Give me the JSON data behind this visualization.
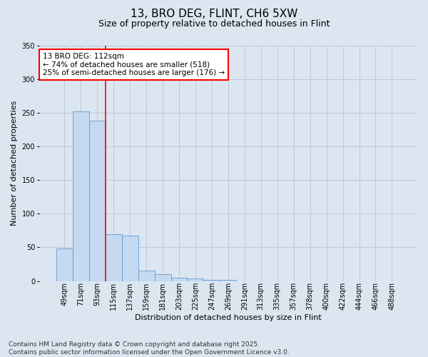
{
  "title_line1": "13, BRO DEG, FLINT, CH6 5XW",
  "title_line2": "Size of property relative to detached houses in Flint",
  "xlabel": "Distribution of detached houses by size in Flint",
  "ylabel": "Number of detached properties",
  "categories": [
    "49sqm",
    "71sqm",
    "93sqm",
    "115sqm",
    "137sqm",
    "159sqm",
    "181sqm",
    "203sqm",
    "225sqm",
    "247sqm",
    "269sqm",
    "291sqm",
    "313sqm",
    "335sqm",
    "357sqm",
    "378sqm",
    "400sqm",
    "422sqm",
    "444sqm",
    "466sqm",
    "488sqm"
  ],
  "values": [
    48,
    252,
    238,
    70,
    67,
    15,
    10,
    5,
    4,
    2,
    2,
    0,
    0,
    0,
    0,
    0,
    0,
    0,
    0,
    0,
    0
  ],
  "bar_color": "#c5d9f0",
  "bar_edge_color": "#5b9bd5",
  "grid_color": "#c0c8d8",
  "background_color": "#dce6f1",
  "annotation_text": "13 BRO DEG: 112sqm\n← 74% of detached houses are smaller (518)\n25% of semi-detached houses are larger (176) →",
  "annotation_box_color": "white",
  "annotation_box_edge_color": "red",
  "vline_color": "red",
  "ylim": [
    0,
    350
  ],
  "yticks": [
    0,
    50,
    100,
    150,
    200,
    250,
    300,
    350
  ],
  "footnote": "Contains HM Land Registry data © Crown copyright and database right 2025.\nContains public sector information licensed under the Open Government Licence v3.0.",
  "title_fontsize": 11,
  "subtitle_fontsize": 9,
  "axis_label_fontsize": 8,
  "tick_fontsize": 7,
  "annotation_fontsize": 7.5,
  "footnote_fontsize": 6.5
}
